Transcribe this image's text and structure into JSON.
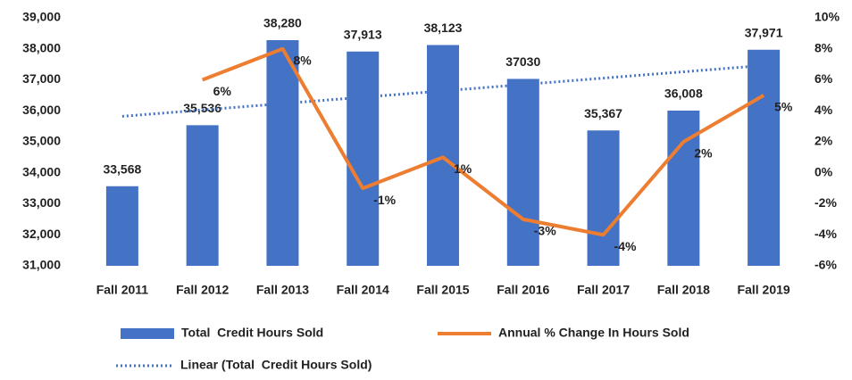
{
  "chart_data": {
    "type": "bar",
    "categories": [
      "Fall 2011",
      "Fall 2012",
      "Fall 2013",
      "Fall 2014",
      "Fall 2015",
      "Fall 2016",
      "Fall 2017",
      "Fall 2018",
      "Fall 2019"
    ],
    "series": [
      {
        "name": "Total  Credit Hours Sold",
        "type": "bar",
        "color": "#4472c4",
        "values": [
          33568,
          35536,
          38280,
          37913,
          38123,
          37030,
          35367,
          36008,
          37971
        ],
        "value_labels": [
          "33,568",
          "35,536",
          "38,280",
          "37,913",
          "38,123",
          "37030",
          "35,367",
          "36,008",
          "37,971"
        ]
      },
      {
        "name": "Annual % Change In Hours Sold",
        "type": "line",
        "axis": "y2",
        "color": "#ed7d31",
        "values": [
          null,
          6,
          8,
          -1,
          1,
          -3,
          -4,
          2,
          5
        ],
        "value_labels": [
          null,
          "6%",
          "8%",
          "-1%",
          "1%",
          "-3%",
          "-4%",
          "2%",
          "5%"
        ]
      },
      {
        "name": "Linear (Total  Credit Hours Sold)",
        "type": "trend",
        "color": "#4472c4",
        "values": [
          35823,
          36028,
          36234,
          36439,
          36644,
          36849,
          37055,
          37260,
          37465
        ]
      }
    ],
    "ylim": [
      31000,
      39000
    ],
    "yticks": [
      {
        "value": 31000,
        "label": "31,000"
      },
      {
        "value": 32000,
        "label": "32,000"
      },
      {
        "value": 33000,
        "label": "33,000"
      },
      {
        "value": 34000,
        "label": "34,000"
      },
      {
        "value": 35000,
        "label": "35,000"
      },
      {
        "value": 36000,
        "label": "36,000"
      },
      {
        "value": 37000,
        "label": "37,000"
      },
      {
        "value": 38000,
        "label": "38,000"
      },
      {
        "value": 39000,
        "label": "39,000"
      }
    ],
    "y2lim": [
      -6,
      10
    ],
    "y2ticks": [
      {
        "value": -6,
        "label": "-6%"
      },
      {
        "value": -4,
        "label": "-4%"
      },
      {
        "value": -2,
        "label": "-2%"
      },
      {
        "value": 0,
        "label": "0%"
      },
      {
        "value": 2,
        "label": "2%"
      },
      {
        "value": 4,
        "label": "4%"
      },
      {
        "value": 6,
        "label": "6%"
      },
      {
        "value": 8,
        "label": "8%"
      },
      {
        "value": 10,
        "label": "10%"
      }
    ],
    "grid": false
  }
}
